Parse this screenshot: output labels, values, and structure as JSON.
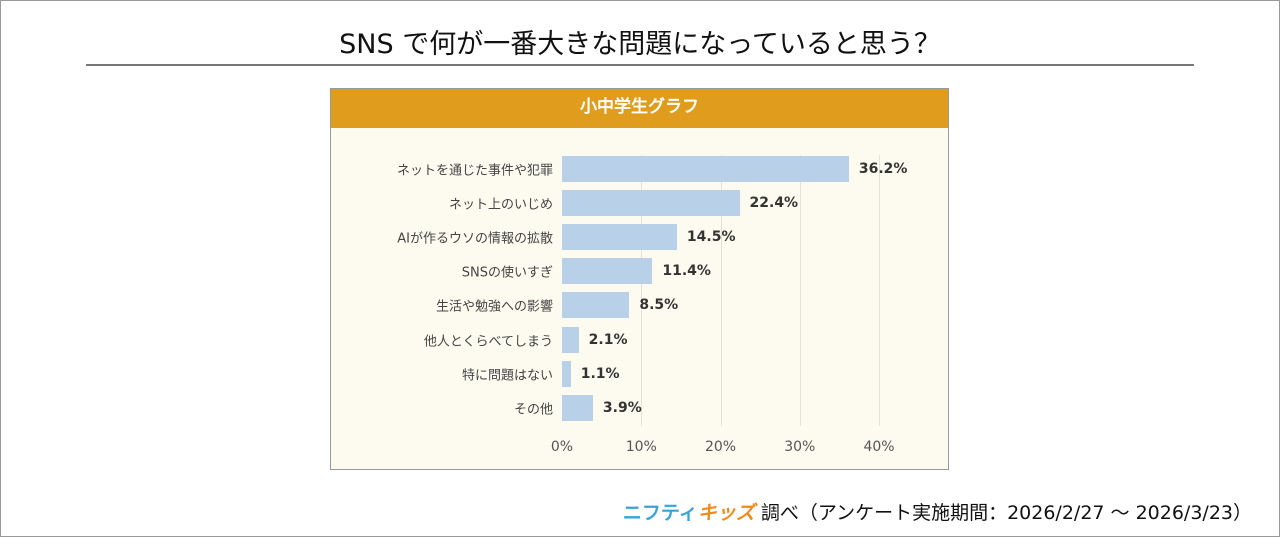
{
  "title": "SNS で何が一番大きな問題になっていると思う？",
  "chart_data": {
    "type": "bar",
    "orientation": "horizontal",
    "title": "小中学生グラフ",
    "categories": [
      "ネットを通じた事件や犯罪",
      "ネット上のいじめ",
      "AIが作るウソの情報の拡散",
      "SNSの使いすぎ",
      "生活や勉強への影響",
      "他人とくらべてしまう",
      "特に問題はない",
      "その他"
    ],
    "values": [
      36.2,
      22.4,
      14.5,
      11.4,
      8.5,
      2.1,
      1.1,
      3.9
    ],
    "data_labels": [
      "36.2%",
      "22.4%",
      "14.5%",
      "11.4%",
      "8.5%",
      "2.1%",
      "1.1%",
      "3.9%"
    ],
    "xlim": [
      0,
      40
    ],
    "xticks": [
      "0%",
      "10%",
      "20%",
      "30%",
      "40%"
    ],
    "grid": true,
    "bar_color": "#b8d1e8",
    "header_color": "#e09c1c"
  },
  "footer": {
    "logo_part1": "ニフティ",
    "logo_part2": "キッズ",
    "text": "調べ（アンケート実施期間：2026/2/27 ～ 2026/3/23）"
  }
}
